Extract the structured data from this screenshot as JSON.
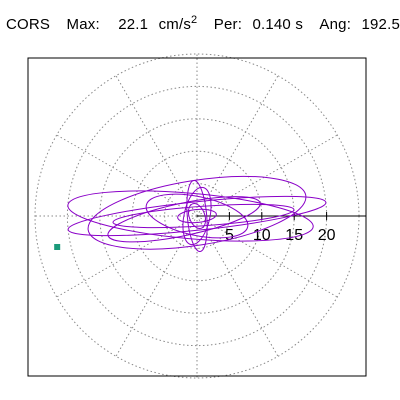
{
  "header": {
    "station": "CORS",
    "max_label": "Max:",
    "max_value": "22.1",
    "max_unit": "cm/s",
    "max_unit_exp": "2",
    "per_label": "Per:",
    "per_value": "0.140 s",
    "ang_label": "Ang:",
    "ang_value": "192.5"
  },
  "chart_data": {
    "type": "polar-hodogram",
    "r_max": 25,
    "r_ticks": [
      5,
      10,
      15,
      20
    ],
    "r_tick_labels": [
      "5",
      "10",
      "15",
      "20"
    ],
    "ring_count": 5,
    "spoke_count": 12,
    "max_amplitude": 22.1,
    "max_angle_deg": 192.5,
    "colors": {
      "trace": "#8a00c8",
      "marker": "#1a9a7a",
      "grid": "#888888"
    },
    "loops": [
      {
        "a": 20,
        "b": 2.2,
        "rot": 6,
        "cx": 0,
        "cy": 0
      },
      {
        "a": 19,
        "b": 3.5,
        "rot": 175,
        "cx": -1,
        "cy": 0
      },
      {
        "a": 17,
        "b": 5.0,
        "rot": 9,
        "cx": 0,
        "cy": 0.5
      },
      {
        "a": 14,
        "b": 1.5,
        "rot": 184,
        "cx": 1,
        "cy": 0
      },
      {
        "a": 12,
        "b": 2.5,
        "rot": 12,
        "cx": -2,
        "cy": -0.5
      },
      {
        "a": 8,
        "b": 3.0,
        "rot": 168,
        "cx": 0,
        "cy": 0
      },
      {
        "a": 5.5,
        "b": 1.5,
        "rot": 95,
        "cx": 0,
        "cy": 0
      },
      {
        "a": 4.5,
        "b": 2.0,
        "rot": 78,
        "cx": 0,
        "cy": 0
      },
      {
        "a": 3.0,
        "b": 1.0,
        "rot": 5,
        "cx": 0,
        "cy": 0
      },
      {
        "a": 2.0,
        "b": 1.2,
        "rot": 110,
        "cx": 0,
        "cy": 0
      }
    ]
  }
}
